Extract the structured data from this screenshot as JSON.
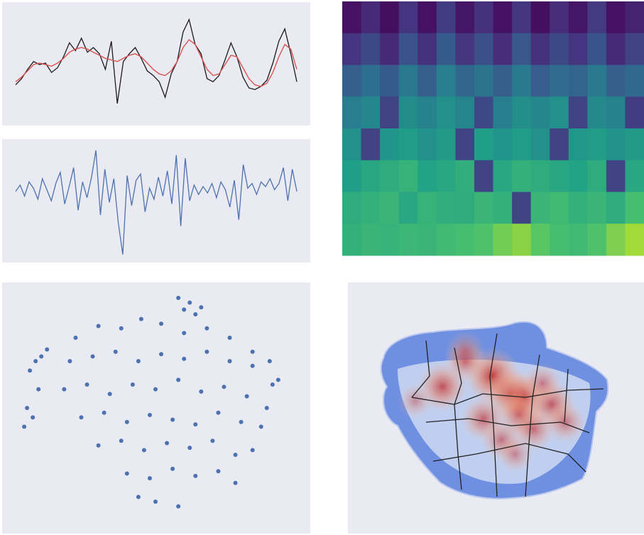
{
  "chart_data": [
    {
      "type": "line",
      "ylim": [
        -3.5,
        3.8
      ],
      "series": [
        {
          "color": "#1a1a1a",
          "values": [
            -1.2,
            -0.8,
            -0.2,
            0.3,
            0.1,
            0.2,
            -0.4,
            -0.1,
            0.6,
            1.5,
            1.0,
            1.8,
            0.9,
            1.2,
            0.8,
            -0.2,
            1.6,
            -2.4,
            0.3,
            0.8,
            1.2,
            0.5,
            -0.3,
            -0.6,
            -1.0,
            -2.0,
            -0.5,
            0.3,
            2.2,
            3.0,
            1.4,
            0.8,
            -0.8,
            -1.0,
            -0.6,
            0.4,
            1.5,
            0.6,
            -0.7,
            -1.4,
            -1.5,
            -1.3,
            -0.9,
            0.2,
            1.6,
            2.4,
            0.8,
            -1.0
          ]
        },
        {
          "color": "#d9534f",
          "values": [
            -1.0,
            -0.7,
            -0.3,
            0.1,
            0.2,
            0.1,
            0.0,
            0.2,
            0.5,
            0.9,
            1.1,
            1.2,
            1.1,
            0.9,
            0.7,
            0.5,
            0.4,
            0.3,
            0.5,
            0.7,
            0.8,
            0.6,
            0.2,
            -0.2,
            -0.5,
            -0.6,
            -0.3,
            0.3,
            1.2,
            1.7,
            1.4,
            0.6,
            -0.2,
            -0.6,
            -0.5,
            0.1,
            0.7,
            0.6,
            -0.1,
            -0.8,
            -1.2,
            -1.3,
            -1.1,
            -0.4,
            0.6,
            1.4,
            1.1,
            -0.2
          ]
        }
      ]
    },
    {
      "type": "line",
      "ylim": [
        -4.2,
        3.0
      ],
      "series": [
        {
          "color": "#4c72b0",
          "values": [
            0.0,
            0.4,
            -0.3,
            0.6,
            0.2,
            -0.5,
            0.8,
            0.1,
            -0.6,
            0.5,
            1.2,
            -0.8,
            0.3,
            1.5,
            -1.2,
            0.6,
            -0.4,
            0.9,
            2.6,
            -1.5,
            1.4,
            -0.7,
            0.8,
            -2.0,
            -4.0,
            1.0,
            -0.9,
            0.7,
            1.1,
            -1.3,
            0.2,
            -0.5,
            0.9,
            -0.3,
            1.3,
            -0.8,
            2.3,
            -2.2,
            2.1,
            -0.6,
            0.4,
            -0.2,
            0.3,
            -0.1,
            0.5,
            -0.4,
            0.6,
            0.1,
            -1.0,
            0.7,
            -1.8,
            1.7,
            0.2,
            0.5,
            -0.2,
            0.6,
            0.3,
            0.8,
            0.1,
            0.5,
            1.5,
            -0.6,
            1.4,
            0.0
          ]
        }
      ]
    },
    {
      "type": "heatmap",
      "zlim": [
        0,
        1
      ],
      "colorscale": [
        "#440154",
        "#46327e",
        "#365c8d",
        "#277f8e",
        "#1fa187",
        "#4ac16d",
        "#a0da39",
        "#fde725"
      ],
      "z": [
        [
          0.05,
          0.12,
          0.04,
          0.15,
          0.05,
          0.18,
          0.06,
          0.14,
          0.05,
          0.16,
          0.04,
          0.13,
          0.06,
          0.17,
          0.05,
          0.1
        ],
        [
          0.15,
          0.22,
          0.12,
          0.25,
          0.14,
          0.28,
          0.16,
          0.24,
          0.13,
          0.27,
          0.14,
          0.22,
          0.15,
          0.26,
          0.12,
          0.2
        ],
        [
          0.3,
          0.36,
          0.28,
          0.4,
          0.3,
          0.42,
          0.33,
          0.38,
          0.3,
          0.41,
          0.29,
          0.35,
          0.32,
          0.4,
          0.3,
          0.34
        ],
        [
          0.42,
          0.46,
          0.2,
          0.48,
          0.44,
          0.5,
          0.45,
          0.22,
          0.43,
          0.49,
          0.46,
          0.5,
          0.2,
          0.47,
          0.44,
          0.18
        ],
        [
          0.5,
          0.2,
          0.52,
          0.55,
          0.5,
          0.54,
          0.2,
          0.56,
          0.52,
          0.55,
          0.5,
          0.2,
          0.53,
          0.55,
          0.51,
          0.54
        ],
        [
          0.56,
          0.6,
          0.62,
          0.65,
          0.58,
          0.6,
          0.63,
          0.2,
          0.6,
          0.64,
          0.62,
          0.6,
          0.58,
          0.62,
          0.2,
          0.6
        ],
        [
          0.62,
          0.64,
          0.66,
          0.6,
          0.65,
          0.63,
          0.62,
          0.66,
          0.64,
          0.2,
          0.66,
          0.68,
          0.64,
          0.66,
          0.62,
          0.7
        ],
        [
          0.64,
          0.66,
          0.65,
          0.67,
          0.66,
          0.68,
          0.7,
          0.72,
          0.78,
          0.82,
          0.74,
          0.7,
          0.68,
          0.72,
          0.8,
          0.86
        ]
      ]
    },
    {
      "type": "scatter",
      "color": "#4c72b0",
      "xlim": [
        0,
        100
      ],
      "ylim": [
        0,
        100
      ],
      "x": [
        60,
        62,
        64,
        58,
        66,
        10,
        12,
        8,
        6,
        9,
        5,
        7,
        4,
        22,
        30,
        38,
        45,
        52,
        60,
        68,
        76,
        84,
        90,
        93,
        20,
        28,
        36,
        44,
        52,
        60,
        68,
        76,
        84,
        91,
        18,
        26,
        34,
        42,
        50,
        58,
        66,
        74,
        82,
        89,
        24,
        32,
        40,
        48,
        56,
        64,
        72,
        80,
        87,
        30,
        38,
        46,
        54,
        62,
        70,
        78,
        84,
        40,
        48,
        56,
        64,
        72,
        78,
        50,
        58,
        44
      ],
      "y": [
        92,
        95,
        90,
        97,
        93,
        72,
        75,
        70,
        66,
        58,
        50,
        46,
        42,
        80,
        85,
        84,
        88,
        86,
        82,
        84,
        80,
        74,
        70,
        62,
        70,
        72,
        74,
        70,
        73,
        71,
        74,
        70,
        68,
        60,
        58,
        60,
        56,
        60,
        58,
        62,
        57,
        59,
        55,
        50,
        46,
        48,
        44,
        47,
        45,
        43,
        48,
        44,
        42,
        34,
        36,
        32,
        35,
        33,
        36,
        30,
        32,
        22,
        20,
        24,
        21,
        23,
        18,
        10,
        8,
        12
      ]
    },
    {
      "type": "density",
      "hotspots_x": [
        26,
        48,
        56,
        62,
        60,
        74,
        44,
        66,
        52,
        80,
        36,
        58,
        70,
        14,
        36
      ],
      "hotspots_y": [
        64,
        70,
        60,
        58,
        48,
        54,
        46,
        40,
        34,
        44,
        84,
        26,
        66,
        56,
        78
      ],
      "weight": [
        0.8,
        0.95,
        0.85,
        0.8,
        0.7,
        0.75,
        0.7,
        0.65,
        0.6,
        0.6,
        0.55,
        0.5,
        0.55,
        0.45,
        0.6
      ]
    }
  ]
}
